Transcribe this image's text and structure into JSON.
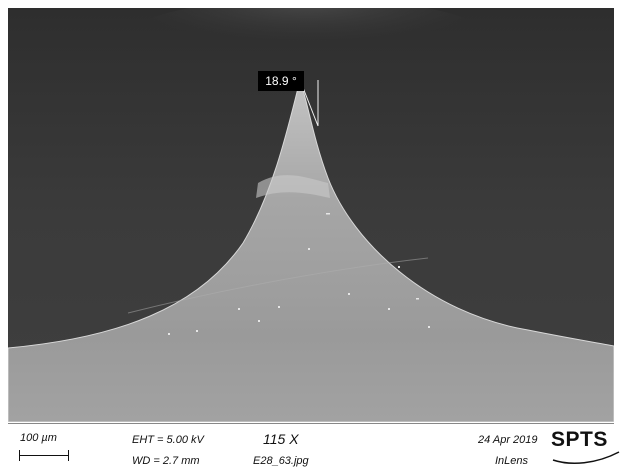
{
  "image": {
    "subject": "SEM micrograph",
    "background_color": "#3a3a3a",
    "specimen_color": "#9a9a9a"
  },
  "annotation": {
    "angle_label": "18.9 °"
  },
  "databar": {
    "scale_label": "100 µm",
    "eht": "EHT =  5.00 kV",
    "wd": "WD =  2.7 mm",
    "magnification": "115 X",
    "filename": "E28_63.jpg",
    "date": "24 Apr 2019",
    "detector": "InLens",
    "logo_text": "SPTS"
  }
}
